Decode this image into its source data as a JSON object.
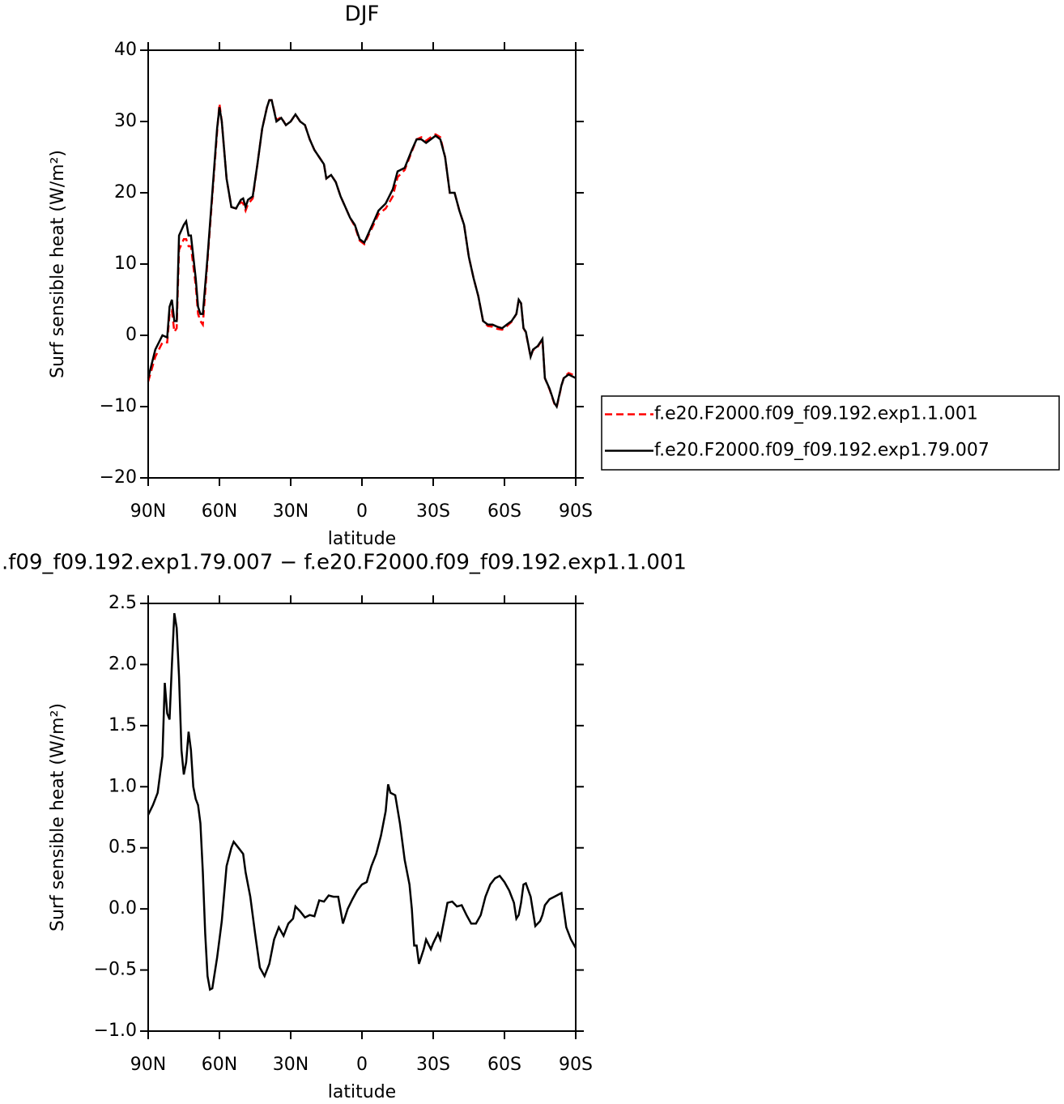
{
  "chart_data": [
    {
      "type": "line",
      "title": "DJF",
      "xlabel": "latitude",
      "ylabel": "Surf sensible heat (W/m²)",
      "x": [
        90,
        87,
        84,
        82,
        81,
        80,
        79,
        78,
        77,
        75,
        74,
        73,
        72,
        70,
        69,
        68,
        67,
        65,
        63,
        61,
        60,
        59,
        57,
        55,
        53,
        51,
        50,
        49,
        48,
        46,
        44,
        42,
        40,
        39,
        38,
        36,
        34,
        32,
        30,
        28,
        26,
        24,
        22,
        20,
        18,
        16,
        15,
        13,
        11,
        9,
        7,
        5,
        3,
        1,
        -1,
        -3,
        -5,
        -7,
        -10,
        -13,
        -15,
        -18,
        -21,
        -23,
        -25,
        -27,
        -29,
        -31,
        -33,
        -35,
        -37,
        -39,
        -41,
        -43,
        -45,
        -47,
        -49,
        -51,
        -53,
        -55,
        -57,
        -59,
        -61,
        -63,
        -65,
        -66,
        -67,
        -68,
        -69,
        -71,
        -72,
        -74,
        -75,
        -76,
        -77,
        -79,
        -81,
        -82,
        -84,
        -85,
        -87,
        -90
      ],
      "series": [
        {
          "name": "f.e20.F2000.f09_f09.192.exp1.1.001",
          "color": "#ff0000",
          "dash": "dashed",
          "values": [
            -6.5,
            -3,
            -1,
            -1,
            3,
            3.5,
            0.5,
            1,
            12,
            13.5,
            13.5,
            12.5,
            12.5,
            7,
            3,
            2,
            1.5,
            10.5,
            19.5,
            28.5,
            32.5,
            30,
            22,
            18,
            17.8,
            18.7,
            18.5,
            17.5,
            18.4,
            19.2,
            24,
            29,
            32,
            33,
            33,
            30.2,
            30.6,
            29.5,
            30,
            31,
            30,
            29.5,
            27.5,
            26,
            25,
            24,
            22,
            22.5,
            21.5,
            19.5,
            18,
            16.5,
            15.3,
            13.3,
            12.8,
            14.2,
            15.6,
            17,
            17.8,
            19.5,
            22.2,
            23.2,
            25.8,
            27.5,
            27.8,
            27.3,
            27.8,
            28.2,
            27.8,
            25,
            20,
            20,
            17.5,
            15.5,
            11,
            8,
            5.5,
            2,
            1.3,
            1.2,
            0.9,
            0.8,
            1.3,
            1.9,
            3,
            5,
            4.5,
            1,
            0.4,
            -3,
            -2.1,
            -1.6,
            -1.1,
            -0.6,
            -6,
            -7.6,
            -9.6,
            -10.1,
            -7.1,
            -5.9,
            -5.3,
            -5.7
          ]
        },
        {
          "name": "f.e20.F2000.f09_f09.192.exp1.79.007",
          "color": "#000000",
          "dash": "solid",
          "values": [
            -6,
            -2,
            0,
            -0.3,
            4,
            5,
            2,
            2,
            14,
            15.5,
            16,
            14,
            14,
            8,
            4,
            3,
            3,
            11,
            20,
            29,
            32,
            30,
            22,
            18,
            17.8,
            19,
            19.2,
            18,
            19,
            19.5,
            24,
            29,
            32,
            33,
            33,
            30,
            30.5,
            29.5,
            30,
            31,
            30,
            29.5,
            27.5,
            26,
            25,
            24,
            22,
            22.5,
            21.5,
            19.5,
            18,
            16.5,
            15.5,
            13.5,
            13,
            14.5,
            16,
            17.5,
            18.5,
            20.5,
            23,
            23.5,
            26,
            27.5,
            27.5,
            27,
            27.5,
            28,
            27.5,
            25,
            20,
            20,
            17.5,
            15.5,
            11,
            8,
            5.5,
            2,
            1.5,
            1.5,
            1.2,
            1,
            1.5,
            2,
            3,
            5,
            4.5,
            1,
            0.5,
            -3,
            -2,
            -1.5,
            -1,
            -0.5,
            -6,
            -7.5,
            -9.5,
            -10,
            -7,
            -6,
            -5.5,
            -6
          ]
        }
      ],
      "xlim": [
        90,
        -90
      ],
      "ylim": [
        -20,
        40
      ],
      "xticks": [
        {
          "value": 90,
          "label": "90N"
        },
        {
          "value": 60,
          "label": "60N"
        },
        {
          "value": 30,
          "label": "30N"
        },
        0,
        {
          "value": -30,
          "label": "30S"
        },
        {
          "value": -60,
          "label": "60S"
        },
        {
          "value": -90,
          "label": "90S"
        }
      ],
      "yticks": [
        {
          "value": -20,
          "label": "−20"
        },
        {
          "value": -10,
          "label": "−10"
        },
        0,
        10,
        20,
        30,
        40
      ],
      "legend": "outside right"
    },
    {
      "type": "line",
      "title": ".f09_f09.192.exp1.79.007 − f.e20.F2000.f09_f09.192.exp1.1.001",
      "xlabel": "latitude",
      "ylabel": "Surf sensible heat (W/m²)",
      "x": [
        90,
        88,
        86,
        84,
        83,
        82,
        81,
        80,
        79,
        78,
        77,
        76,
        75,
        74,
        73,
        72,
        71,
        70,
        69,
        68,
        67,
        66,
        65,
        64,
        63,
        61,
        59,
        57,
        55,
        54,
        52,
        50,
        49,
        47,
        45,
        43,
        41,
        39,
        37,
        35,
        33,
        31,
        29,
        28,
        26,
        24,
        22,
        20,
        18,
        16,
        14,
        12,
        10,
        8,
        6,
        4,
        2,
        0,
        -2,
        -4,
        -6,
        -8,
        -10,
        -11,
        -12,
        -14,
        -16,
        -18,
        -20,
        -21,
        -22,
        -23,
        -24,
        -26,
        -27,
        -29,
        -30,
        -32,
        -33,
        -35,
        -36,
        -38,
        -40,
        -42,
        -44,
        -46,
        -48,
        -50,
        -52,
        -54,
        -56,
        -58,
        -60,
        -62,
        -64,
        -65,
        -66,
        -67,
        -68,
        -69,
        -71,
        -73,
        -75,
        -76,
        -77,
        -79,
        -81,
        -83,
        -84,
        -86,
        -88,
        -90
      ],
      "series": [
        {
          "name": null,
          "color": "#000000",
          "dash": "solid",
          "values": [
            0.77,
            0.85,
            0.95,
            1.25,
            1.85,
            1.6,
            1.55,
            2.0,
            2.42,
            2.3,
            1.9,
            1.3,
            1.1,
            1.2,
            1.45,
            1.3,
            1.0,
            0.9,
            0.85,
            0.7,
            0.3,
            -0.2,
            -0.55,
            -0.66,
            -0.65,
            -0.4,
            -0.1,
            0.35,
            0.5,
            0.55,
            0.5,
            0.45,
            0.3,
            0.1,
            -0.2,
            -0.48,
            -0.55,
            -0.45,
            -0.25,
            -0.15,
            -0.22,
            -0.12,
            -0.08,
            0.02,
            -0.02,
            -0.07,
            -0.05,
            -0.06,
            0.07,
            0.06,
            0.11,
            0.1,
            0.1,
            -0.12,
            0,
            0.08,
            0.15,
            0.2,
            0.22,
            0.35,
            0.45,
            0.6,
            0.8,
            1.02,
            0.95,
            0.93,
            0.7,
            0.4,
            0.2,
            0.0,
            -0.3,
            -0.3,
            -0.45,
            -0.33,
            -0.25,
            -0.33,
            -0.28,
            -0.2,
            -0.25,
            -0.05,
            0.05,
            0.06,
            0.02,
            0.03,
            -0.05,
            -0.12,
            -0.12,
            -0.05,
            0.1,
            0.2,
            0.25,
            0.27,
            0.22,
            0.15,
            0.05,
            -0.08,
            -0.05,
            0.05,
            0.2,
            0.21,
            0.1,
            -0.14,
            -0.1,
            -0.05,
            0.03,
            0.08,
            0.1,
            0.12,
            0.13,
            -0.15,
            -0.25,
            -0.32
          ]
        }
      ],
      "xlim": [
        90,
        -90
      ],
      "ylim": [
        -1.0,
        2.5
      ],
      "xticks": [
        {
          "value": 90,
          "label": "90N"
        },
        {
          "value": 60,
          "label": "60N"
        },
        {
          "value": 30,
          "label": "30N"
        },
        0,
        {
          "value": -30,
          "label": "30S"
        },
        {
          "value": -60,
          "label": "60S"
        },
        {
          "value": -90,
          "label": "90S"
        }
      ],
      "yticks": [
        {
          "value": -1.0,
          "label": "−1.0"
        },
        {
          "value": -0.5,
          "label": "−0.5"
        },
        {
          "value": 0.0,
          "label": "0.0"
        },
        0.5,
        {
          "value": 1.0,
          "label": "1.0"
        },
        1.5,
        {
          "value": 2.0,
          "label": "2.0"
        },
        2.5
      ]
    }
  ]
}
